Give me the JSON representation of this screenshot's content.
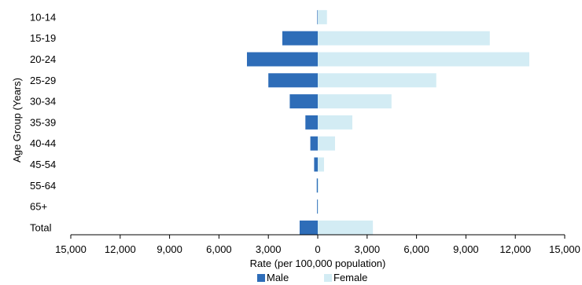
{
  "chart_data": {
    "type": "bar",
    "orientation": "horizontal-diverging",
    "categories": [
      "10-14",
      "15-19",
      "20-24",
      "25-29",
      "30-34",
      "35-39",
      "40-44",
      "45-54",
      "55-64",
      "65+",
      "Total"
    ],
    "series": [
      {
        "name": "Male",
        "color": "#2E6DB8",
        "direction": "left",
        "values": [
          30,
          2150,
          4300,
          3000,
          1700,
          750,
          450,
          220,
          60,
          40,
          1100
        ]
      },
      {
        "name": "Female",
        "color": "#D3ECF4",
        "direction": "right",
        "values": [
          560,
          10450,
          12850,
          7200,
          4480,
          2100,
          1050,
          380,
          60,
          40,
          3350
        ]
      }
    ],
    "xlabel": "Rate (per 100,000 population)",
    "ylabel": "Age Group (Years)",
    "xlim": [
      -15000,
      15000
    ],
    "xticks": [
      -15000,
      -12000,
      -9000,
      -6000,
      -3000,
      0,
      3000,
      6000,
      9000,
      12000,
      15000
    ],
    "xtick_labels": [
      "15,000",
      "12,000",
      "9,000",
      "6,000",
      "3,000",
      "0",
      "3,000",
      "6,000",
      "9,000",
      "12,000",
      "15,000"
    ],
    "legend_position": "bottom-center",
    "grid": false
  }
}
